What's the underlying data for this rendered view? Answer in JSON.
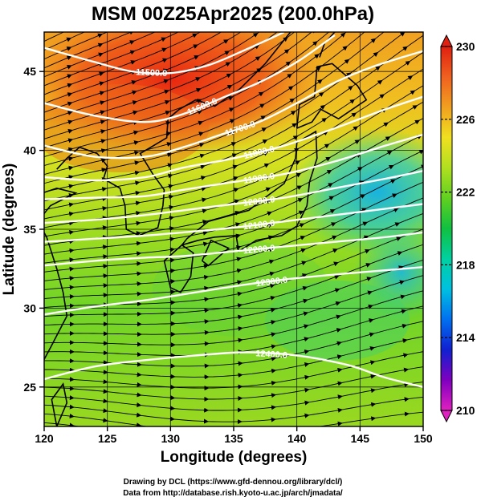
{
  "chart_data": {
    "type": "heatmap",
    "title": "MSM 00Z25Apr2025 (200.0hPa)",
    "xlabel": "Longitude (degrees)",
    "ylabel": "Latitude  (degrees)",
    "xlim": [
      120,
      150
    ],
    "ylim": [
      22.5,
      47.5
    ],
    "xticks": [
      120,
      125,
      130,
      135,
      140,
      145,
      150
    ],
    "yticks": [
      25,
      30,
      35,
      40,
      45
    ],
    "colorbar": {
      "ticks": [
        210,
        214,
        218,
        222,
        226,
        230
      ],
      "range": [
        210,
        230
      ],
      "colors": [
        "#e020c0",
        "#8000c0",
        "#1020d0",
        "#0070f0",
        "#00c0e0",
        "#00d0a0",
        "#10c040",
        "#60d020",
        "#b0e020",
        "#f0e020",
        "#f0a020",
        "#f06020",
        "#e02010"
      ]
    },
    "contours": [
      {
        "label": "11500.0",
        "points": [
          [
            120,
            46.5
          ],
          [
            124,
            45.6
          ],
          [
            127,
            45.0
          ],
          [
            130,
            44.9
          ],
          [
            133,
            45.4
          ],
          [
            136,
            46.4
          ],
          [
            139,
            47.5
          ]
        ]
      },
      {
        "label": "11600.0",
        "points": [
          [
            120,
            43.0
          ],
          [
            124,
            42.2
          ],
          [
            128,
            41.8
          ],
          [
            131,
            42.3
          ],
          [
            134,
            43.3
          ],
          [
            137,
            44.3
          ],
          [
            140,
            45.6
          ],
          [
            143,
            47.3
          ]
        ]
      },
      {
        "label": "11700.0",
        "points": [
          [
            120,
            40.3
          ],
          [
            124,
            39.6
          ],
          [
            128,
            39.6
          ],
          [
            131,
            40.2
          ],
          [
            134,
            41.0
          ],
          [
            137,
            41.8
          ],
          [
            140,
            43.0
          ],
          [
            143,
            44.3
          ],
          [
            146,
            45.3
          ],
          [
            150,
            46.3
          ]
        ]
      },
      {
        "label": "11800.0",
        "points": [
          [
            120,
            38.3
          ],
          [
            124,
            38.1
          ],
          [
            128,
            38.3
          ],
          [
            131,
            38.9
          ],
          [
            135,
            39.5
          ],
          [
            139,
            40.3
          ],
          [
            143,
            41.4
          ],
          [
            147,
            42.6
          ],
          [
            150,
            43.4
          ]
        ]
      },
      {
        "label": "11900.0",
        "points": [
          [
            120,
            36.9
          ],
          [
            124,
            37.0
          ],
          [
            128,
            37.1
          ],
          [
            131,
            37.5
          ],
          [
            135,
            38.0
          ],
          [
            139,
            38.5
          ],
          [
            143,
            39.3
          ],
          [
            147,
            40.3
          ],
          [
            150,
            41.0
          ]
        ]
      },
      {
        "label": "12000.0",
        "points": [
          [
            120,
            35.4
          ],
          [
            124,
            35.6
          ],
          [
            128,
            35.9
          ],
          [
            131,
            36.2
          ],
          [
            135,
            36.6
          ],
          [
            139,
            37.0
          ],
          [
            143,
            37.6
          ],
          [
            147,
            38.2
          ],
          [
            150,
            38.7
          ]
        ]
      },
      {
        "label": "12100.0",
        "points": [
          [
            120,
            34.2
          ],
          [
            124,
            34.4
          ],
          [
            128,
            34.6
          ],
          [
            131,
            34.8
          ],
          [
            135,
            35.1
          ],
          [
            139,
            35.5
          ],
          [
            143,
            35.9
          ],
          [
            147,
            36.3
          ],
          [
            150,
            36.6
          ]
        ]
      },
      {
        "label": "12200.0",
        "points": [
          [
            120,
            32.7
          ],
          [
            124,
            33.0
          ],
          [
            128,
            33.2
          ],
          [
            131,
            33.3
          ],
          [
            135,
            33.6
          ],
          [
            139,
            33.9
          ],
          [
            143,
            34.2
          ],
          [
            147,
            34.5
          ],
          [
            150,
            34.8
          ]
        ]
      },
      {
        "label": "12300.0",
        "points": [
          [
            120,
            29.6
          ],
          [
            124,
            30.1
          ],
          [
            128,
            30.5
          ],
          [
            132,
            31.0
          ],
          [
            136,
            31.5
          ],
          [
            140,
            31.9
          ],
          [
            144,
            32.2
          ],
          [
            147,
            32.4
          ],
          [
            150,
            32.6
          ]
        ]
      },
      {
        "label": "12400.0",
        "points": [
          [
            120,
            25.5
          ],
          [
            124,
            26.3
          ],
          [
            128,
            26.7
          ],
          [
            132,
            27.0
          ],
          [
            136,
            27.2
          ],
          [
            140,
            27.0
          ],
          [
            144,
            26.4
          ],
          [
            147,
            25.6
          ],
          [
            150,
            25.0
          ]
        ]
      }
    ]
  },
  "credits": {
    "line1": "Drawing by DCL (https://www.gfd-dennou.org/library/dcl/)",
    "line2": "Data from http://database.rish.kyoto-u.ac.jp/arch/jmadata/"
  }
}
